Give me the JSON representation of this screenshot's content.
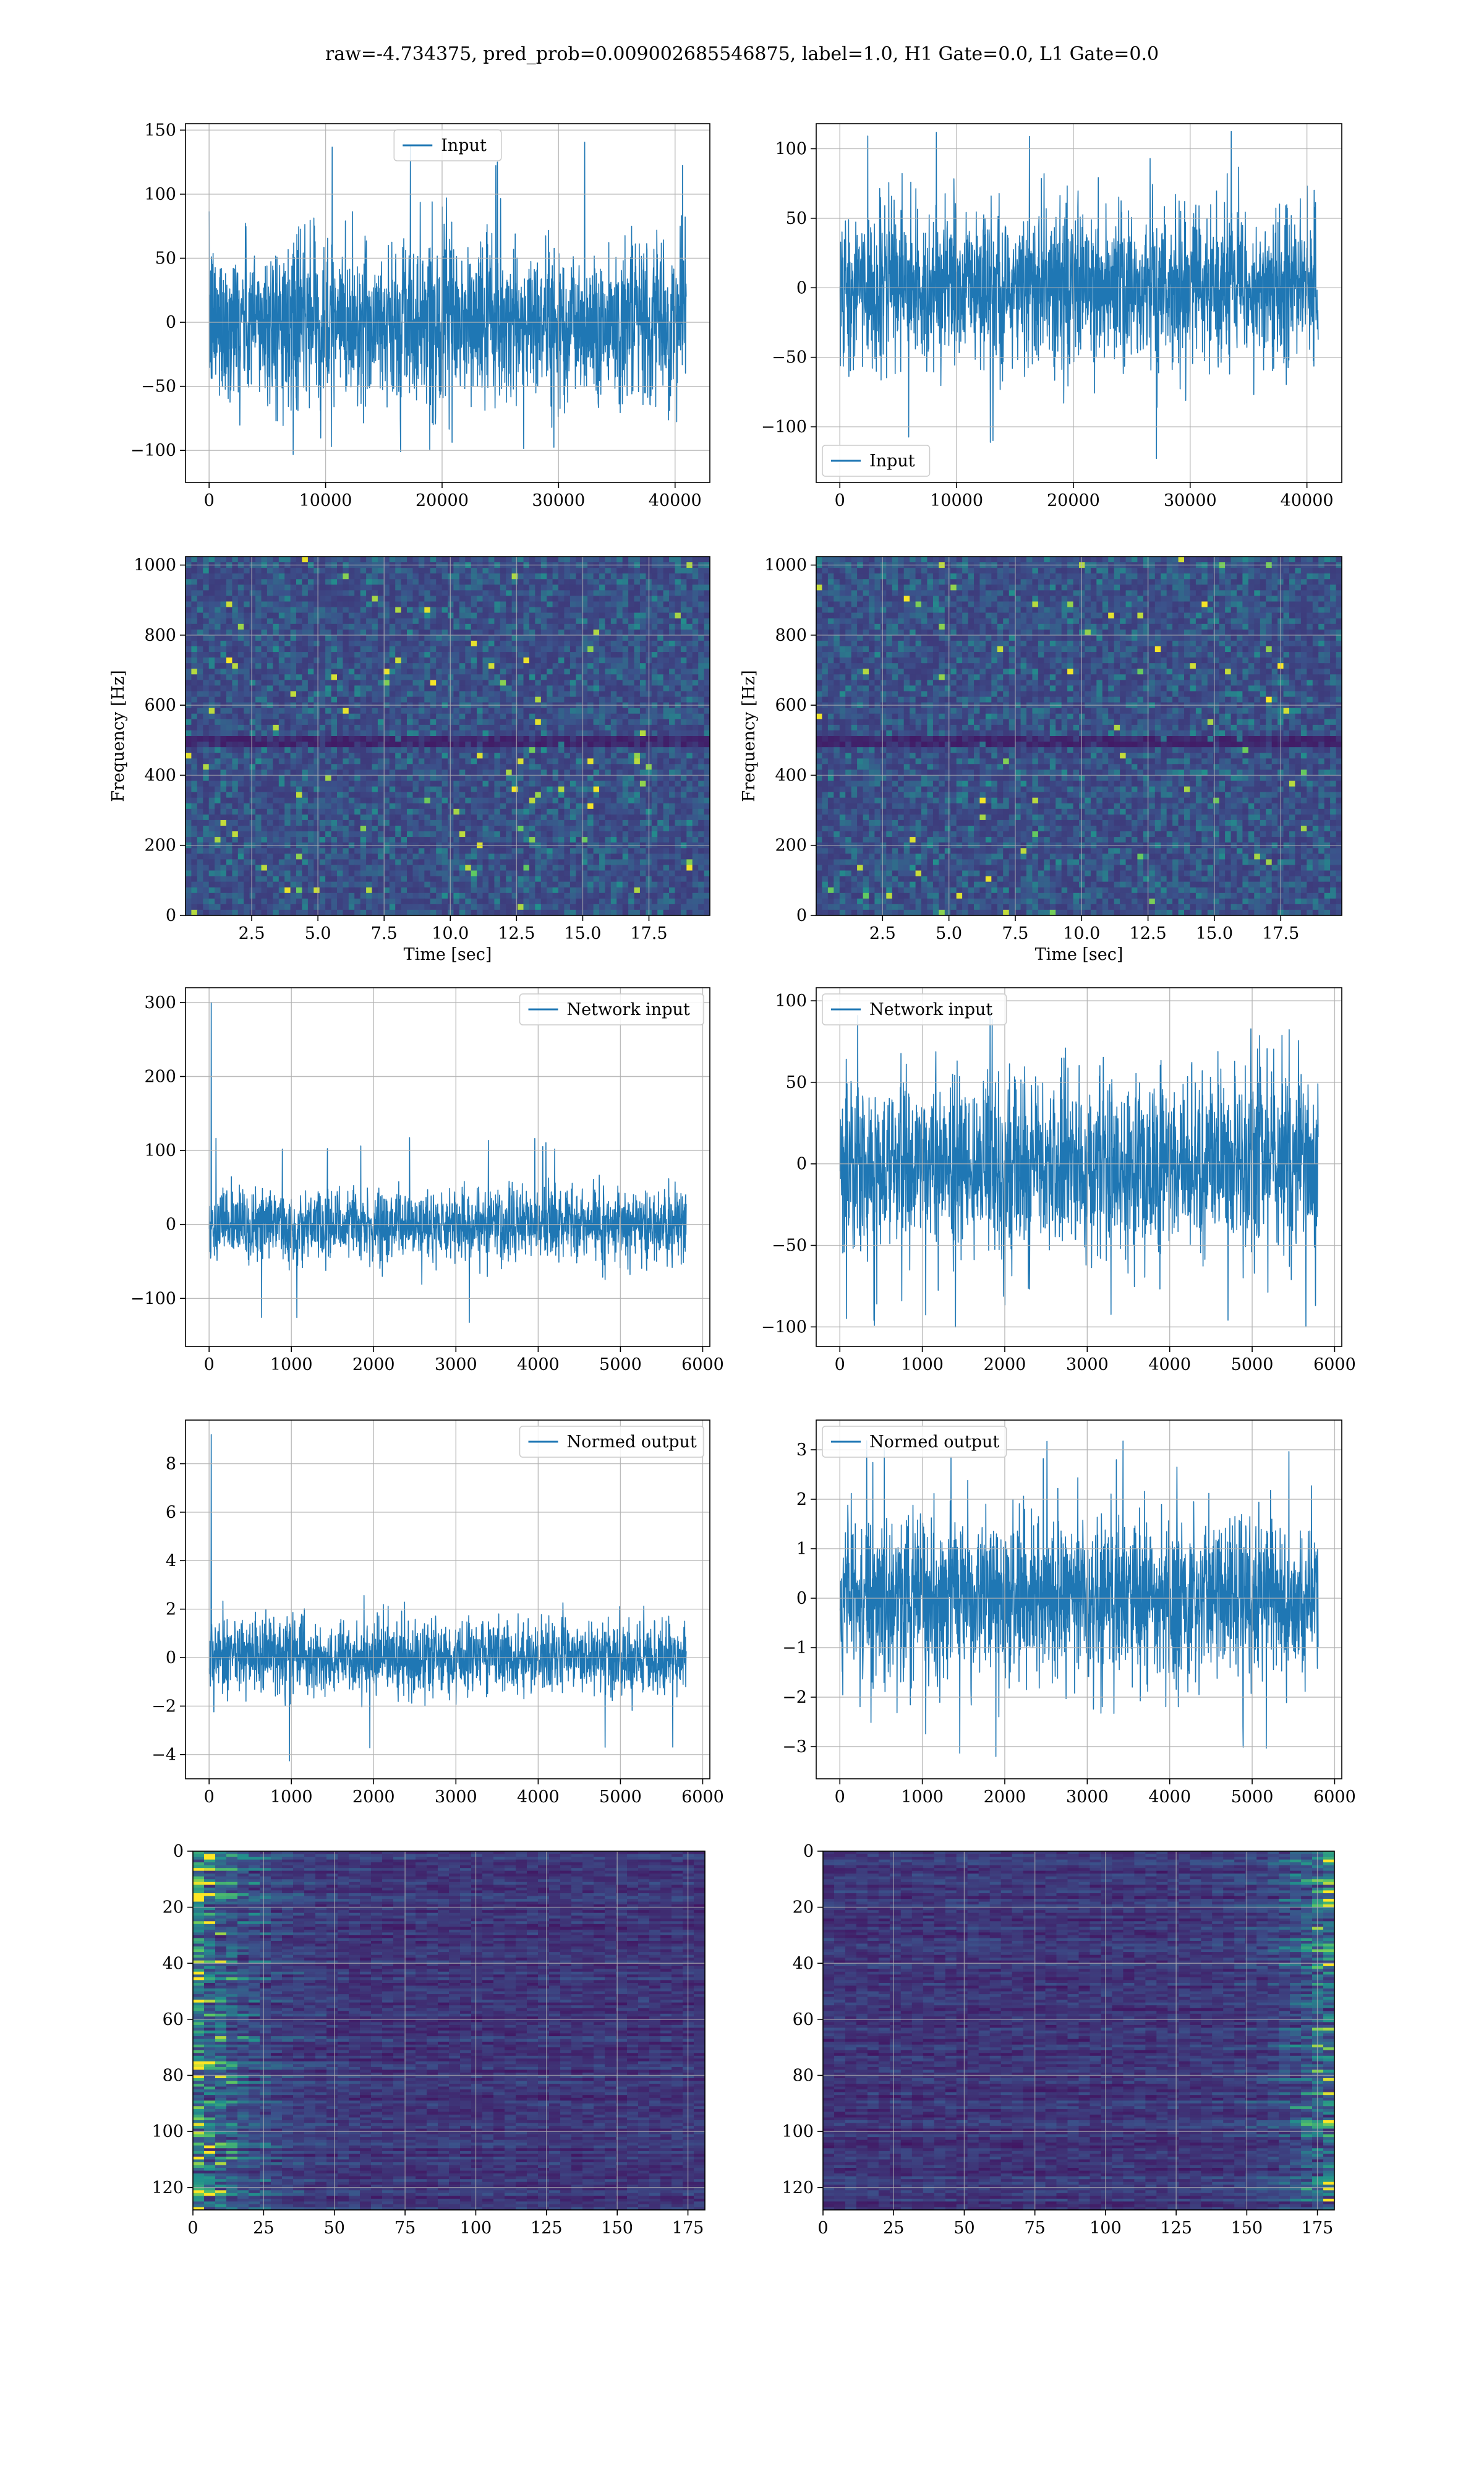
{
  "title": "raw=-4.734375, pred_prob=0.009002685546875, label=1.0, H1 Gate=0.0, L1 Gate=0.0",
  "colors": {
    "line": "#1f77b4",
    "grid": "#b0b0b0",
    "axes": "#000000"
  },
  "chart_data": [
    {
      "id": "h1-input",
      "type": "line",
      "series": [
        {
          "name": "Input"
        }
      ],
      "legend": "top-center",
      "x_range": [
        0,
        40960
      ],
      "ylim": [
        -125,
        155
      ],
      "xticks": [
        "0",
        "10000",
        "20000",
        "30000",
        "40000"
      ],
      "xtick_values": [
        0,
        10000,
        20000,
        30000,
        40000
      ],
      "yticks": [
        "−100",
        "−50",
        "0",
        "50",
        "100",
        "150"
      ],
      "ytick_values": [
        -100,
        -50,
        0,
        50,
        100,
        150
      ],
      "amplitude": 60,
      "extreme_max": 143,
      "extreme_min": -115,
      "grid": true
    },
    {
      "id": "l1-input",
      "type": "line",
      "series": [
        {
          "name": "Input"
        }
      ],
      "legend": "bottom-left",
      "x_range": [
        0,
        40960
      ],
      "ylim": [
        -140,
        118
      ],
      "xticks": [
        "0",
        "10000",
        "20000",
        "30000",
        "40000"
      ],
      "xtick_values": [
        0,
        10000,
        20000,
        30000,
        40000
      ],
      "yticks": [
        "−100",
        "−50",
        "0",
        "50",
        "100"
      ],
      "ytick_values": [
        -100,
        -50,
        0,
        50,
        100
      ],
      "amplitude": 55,
      "extreme_max": 115,
      "extreme_min": -125,
      "grid": true
    },
    {
      "id": "h1-spectrogram",
      "type": "heatmap",
      "xlabel": "Time [sec]",
      "ylabel": "Frequency [Hz]",
      "x_range": [
        0,
        19.8
      ],
      "ylim": [
        0,
        1024
      ],
      "xticks": [
        "2.5",
        "5.0",
        "7.5",
        "10.0",
        "12.5",
        "15.0",
        "17.5"
      ],
      "xtick_values": [
        2.5,
        5,
        7.5,
        10,
        12.5,
        15,
        17.5
      ],
      "yticks": [
        "0",
        "200",
        "400",
        "600",
        "800",
        "1000"
      ],
      "ytick_values": [
        0,
        200,
        400,
        600,
        800,
        1000
      ],
      "colormap": "viridis",
      "grid": true
    },
    {
      "id": "l1-spectrogram",
      "type": "heatmap",
      "xlabel": "Time [sec]",
      "ylabel": "Frequency [Hz]",
      "x_range": [
        0,
        19.8
      ],
      "ylim": [
        0,
        1024
      ],
      "xticks": [
        "2.5",
        "5.0",
        "7.5",
        "10.0",
        "12.5",
        "15.0",
        "17.5"
      ],
      "xtick_values": [
        2.5,
        5,
        7.5,
        10,
        12.5,
        15,
        17.5
      ],
      "yticks": [
        "0",
        "200",
        "400",
        "600",
        "800",
        "1000"
      ],
      "ytick_values": [
        0,
        200,
        400,
        600,
        800,
        1000
      ],
      "colormap": "viridis",
      "grid": true
    },
    {
      "id": "h1-network-input",
      "type": "line",
      "series": [
        {
          "name": "Network input"
        }
      ],
      "legend": "top-right",
      "x_range": [
        0,
        5800
      ],
      "ylim": [
        -165,
        320
      ],
      "xticks": [
        "0",
        "1000",
        "2000",
        "3000",
        "4000",
        "5000",
        "6000"
      ],
      "xtick_values": [
        0,
        1000,
        2000,
        3000,
        4000,
        5000,
        6000
      ],
      "yticks": [
        "−100",
        "0",
        "100",
        "200",
        "300"
      ],
      "ytick_values": [
        -100,
        0,
        100,
        200,
        300
      ],
      "amplitude": 45,
      "spike": 300,
      "extreme_max": 118,
      "extreme_min": -140,
      "grid": true
    },
    {
      "id": "l1-network-input",
      "type": "line",
      "series": [
        {
          "name": "Network input"
        }
      ],
      "legend": "top-left",
      "x_range": [
        0,
        5800
      ],
      "ylim": [
        -112,
        108
      ],
      "xticks": [
        "0",
        "1000",
        "2000",
        "3000",
        "4000",
        "5000",
        "6000"
      ],
      "xtick_values": [
        0,
        1000,
        2000,
        3000,
        4000,
        5000,
        6000
      ],
      "yticks": [
        "−100",
        "−50",
        "0",
        "50",
        "100"
      ],
      "ytick_values": [
        -100,
        -50,
        0,
        50,
        100
      ],
      "amplitude": 52,
      "extreme_max": 100,
      "extreme_min": -100,
      "grid": true
    },
    {
      "id": "h1-normed-output",
      "type": "line",
      "series": [
        {
          "name": "Normed output"
        }
      ],
      "legend": "top-right",
      "x_range": [
        0,
        5800
      ],
      "ylim": [
        -5,
        9.8
      ],
      "xticks": [
        "0",
        "1000",
        "2000",
        "3000",
        "4000",
        "5000",
        "6000"
      ],
      "xtick_values": [
        0,
        1000,
        2000,
        3000,
        4000,
        5000,
        6000
      ],
      "yticks": [
        "−4",
        "−2",
        "0",
        "2",
        "4",
        "6",
        "8"
      ],
      "ytick_values": [
        -4,
        -2,
        0,
        2,
        4,
        6,
        8
      ],
      "amplitude": 1.45,
      "spike": 9.2,
      "extreme_max": 2.6,
      "extreme_min": -4.3,
      "grid": true
    },
    {
      "id": "l1-normed-output",
      "type": "line",
      "series": [
        {
          "name": "Normed output"
        }
      ],
      "legend": "top-left",
      "x_range": [
        0,
        5800
      ],
      "ylim": [
        -3.65,
        3.6
      ],
      "xticks": [
        "0",
        "1000",
        "2000",
        "3000",
        "4000",
        "5000",
        "6000"
      ],
      "xtick_values": [
        0,
        1000,
        2000,
        3000,
        4000,
        5000,
        6000
      ],
      "yticks": [
        "−3",
        "−2",
        "−1",
        "0",
        "1",
        "2",
        "3"
      ],
      "ytick_values": [
        -3,
        -2,
        -1,
        0,
        1,
        2,
        3
      ],
      "amplitude": 1.6,
      "extreme_max": 3.2,
      "extreme_min": -3.2,
      "grid": true
    },
    {
      "id": "h1-feature-map",
      "type": "heatmap",
      "x_range": [
        0,
        181
      ],
      "ylim": [
        128,
        0
      ],
      "xticks": [
        "0",
        "25",
        "50",
        "75",
        "100",
        "125",
        "150",
        "175"
      ],
      "xtick_values": [
        0,
        25,
        50,
        75,
        100,
        125,
        150,
        175
      ],
      "yticks": [
        "0",
        "20",
        "40",
        "60",
        "80",
        "100",
        "120"
      ],
      "ytick_values": [
        0,
        20,
        40,
        60,
        80,
        100,
        120
      ],
      "colormap": "viridis",
      "bright_side": "left",
      "grid": true
    },
    {
      "id": "l1-feature-map",
      "type": "heatmap",
      "x_range": [
        0,
        181
      ],
      "ylim": [
        128,
        0
      ],
      "xticks": [
        "0",
        "25",
        "50",
        "75",
        "100",
        "125",
        "150",
        "175"
      ],
      "xtick_values": [
        0,
        25,
        50,
        75,
        100,
        125,
        150,
        175
      ],
      "yticks": [
        "0",
        "20",
        "40",
        "60",
        "80",
        "100",
        "120"
      ],
      "ytick_values": [
        0,
        20,
        40,
        60,
        80,
        100,
        120
      ],
      "colormap": "viridis",
      "bright_side": "right",
      "grid": true
    }
  ]
}
